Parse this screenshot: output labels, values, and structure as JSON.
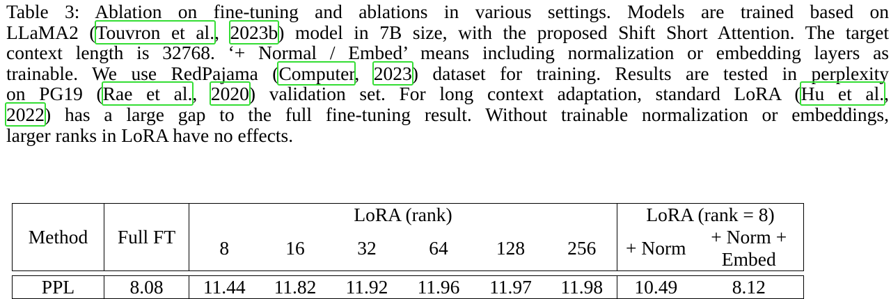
{
  "caption": {
    "line1": [
      "Table 3: Ablation on fine-tuning and ablations in various settings. Models are trained based on"
    ],
    "line2": [
      "LLaMA2 (",
      "Touvron et al.",
      ", ",
      "2023b",
      ") model in 7B size, with the proposed Shift Short Attention. The target"
    ],
    "line3": [
      "context length is 32768. ‘+ Normal / Embed’ means including normalization or embedding layers as"
    ],
    "line4": [
      "trainable. We use RedPajama (",
      "Computer",
      ", ",
      "2023",
      ") dataset for training. Results are tested in perplexity"
    ],
    "line5": [
      "on PG19 (",
      "Rae et al.",
      ", ",
      "2020",
      ") validation set. For long context adaptation, standard LoRA (",
      "Hu et al.",
      ","
    ],
    "line6": [
      "2022",
      ") has a large gap to the full fine-tuning result. Without trainable normalization or embeddings,"
    ],
    "line7": [
      "larger ranks in LoRA have no effects."
    ]
  },
  "table": {
    "method_header": "Method",
    "fullft_header": "Full FT",
    "lora_group_header": "LoRA (rank)",
    "lora8_group_header": "LoRA (rank = 8)",
    "ranks": [
      "8",
      "16",
      "32",
      "64",
      "128",
      "256"
    ],
    "lora8_cols": [
      "+ Norm",
      "+ Norm + Embed"
    ],
    "row": {
      "label": "PPL",
      "full_ft": "8.08",
      "lora": [
        "11.44",
        "11.82",
        "11.92",
        "11.96",
        "11.97",
        "11.98"
      ],
      "lora8": [
        "10.49",
        "8.12"
      ]
    }
  },
  "colors": {
    "citation_box": "#33dd33"
  }
}
